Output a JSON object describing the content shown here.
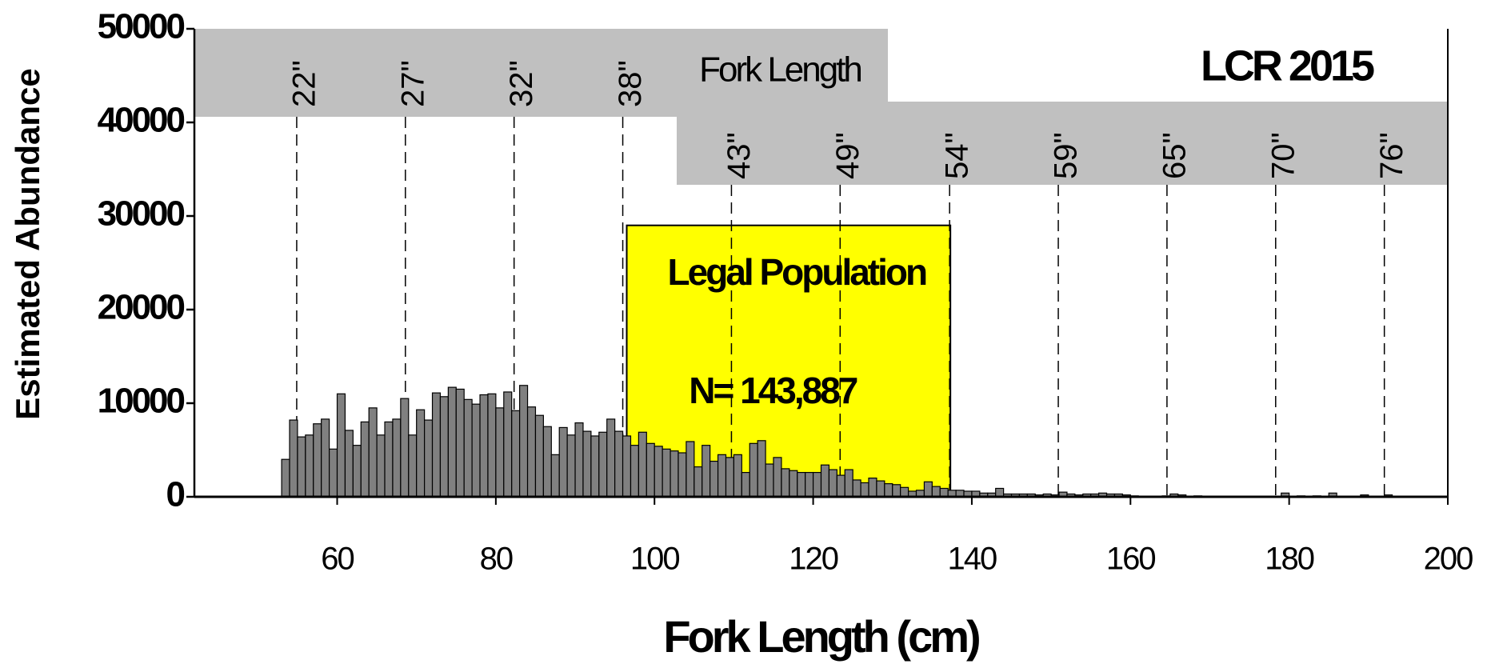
{
  "chart_data": {
    "type": "histogram",
    "title": "LCR 2015",
    "x_label": "Fork Length (cm)",
    "y_label": "Estimated Abundance",
    "secondary_axis_label": "Fork Length",
    "annotation_title": "Legal Population",
    "annotation_text": "N= 143,887",
    "color": "#808080",
    "highlight_color": "#ffff00",
    "legal_range": [
      96.5,
      137.3
    ],
    "legal_top": 29000,
    "bins": [
      53,
      54,
      55,
      56,
      57,
      58,
      59,
      60,
      61,
      62,
      63,
      64,
      65,
      66,
      67,
      68,
      69,
      70,
      71,
      72,
      73,
      74,
      75,
      76,
      77,
      78,
      79,
      80,
      81,
      82,
      83,
      84,
      85,
      86,
      87,
      88,
      89,
      90,
      91,
      92,
      93,
      94,
      95,
      96,
      97,
      98,
      99,
      100,
      101,
      102,
      103,
      104,
      105,
      106,
      107,
      108,
      109,
      110,
      111,
      112,
      113,
      114,
      115,
      116,
      117,
      118,
      119,
      120,
      121,
      122,
      123,
      124,
      125,
      126,
      127,
      128,
      129,
      130,
      131,
      132,
      133,
      134,
      135,
      136,
      137,
      138,
      139,
      140,
      141,
      142,
      143,
      144,
      145,
      146,
      147,
      148,
      149,
      150,
      151,
      152,
      153,
      154,
      155,
      156,
      157,
      158,
      159,
      160,
      161,
      162,
      163,
      164,
      165,
      166,
      167,
      168,
      169,
      170,
      171,
      172,
      173,
      174,
      175,
      176,
      177,
      178,
      179,
      180,
      181,
      182,
      183,
      184,
      185,
      186,
      187,
      188,
      189,
      190,
      191,
      192,
      193
    ],
    "values": [
      4000,
      8200,
      6400,
      6600,
      7800,
      8300,
      5100,
      11000,
      7100,
      5500,
      8000,
      9500,
      6600,
      8000,
      8300,
      10500,
      6600,
      9300,
      8200,
      11100,
      10700,
      11700,
      11500,
      10400,
      9900,
      10900,
      11000,
      9500,
      11200,
      9200,
      11900,
      9600,
      8700,
      7500,
      4500,
      7400,
      6600,
      7900,
      7000,
      6500,
      6900,
      8300,
      7000,
      6500,
      5500,
      6900,
      5700,
      5400,
      5100,
      4900,
      4700,
      5900,
      3200,
      5500,
      3800,
      4500,
      4200,
      4500,
      2600,
      5700,
      6000,
      3500,
      4200,
      3000,
      2800,
      2600,
      2600,
      2600,
      3400,
      2900,
      2300,
      2900,
      1800,
      1500,
      2000,
      1700,
      1400,
      1300,
      1000,
      600,
      700,
      1600,
      1100,
      900,
      700,
      700,
      600,
      600,
      400,
      400,
      900,
      300,
      300,
      300,
      300,
      200,
      300,
      200,
      500,
      300,
      200,
      300,
      300,
      400,
      300,
      300,
      200,
      100,
      0,
      0,
      0,
      100,
      300,
      200,
      0,
      100,
      0,
      0,
      0,
      0,
      0,
      0,
      0,
      0,
      0,
      0,
      400,
      0,
      100,
      0,
      100,
      0,
      400,
      0,
      0,
      0,
      200,
      0,
      0,
      200
    ],
    "xlim": [
      42,
      200
    ],
    "xticks": [
      60,
      80,
      100,
      120,
      140,
      160,
      180,
      200
    ],
    "ylim": [
      0,
      50000
    ],
    "yticks": [
      0,
      10000,
      20000,
      30000,
      40000,
      50000
    ],
    "inch_lines": [
      {
        "value": 54.9,
        "label": "22\""
      },
      {
        "value": 68.6,
        "label": "27\""
      },
      {
        "value": 82.3,
        "label": "32\""
      },
      {
        "value": 96.0,
        "label": "38\""
      },
      {
        "value": 109.7,
        "label": "43\""
      },
      {
        "value": 123.4,
        "label": "49\""
      },
      {
        "value": 137.2,
        "label": "54\""
      },
      {
        "value": 150.9,
        "label": "59\""
      },
      {
        "value": 164.6,
        "label": "65\""
      },
      {
        "value": 178.3,
        "label": "70\""
      },
      {
        "value": 192.0,
        "label": "76\""
      }
    ]
  }
}
